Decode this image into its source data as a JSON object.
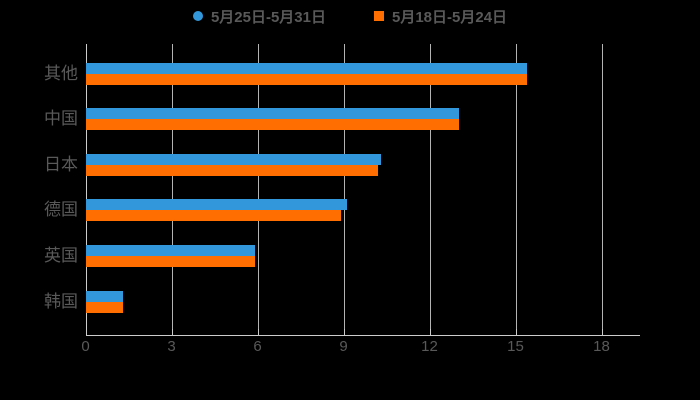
{
  "chart_data": {
    "type": "bar",
    "orientation": "horizontal",
    "title": "",
    "xlabel": "",
    "ylabel": "",
    "categories": [
      "其他",
      "中国",
      "日本",
      "德国",
      "英国",
      "韩国"
    ],
    "series": [
      {
        "name": "5月25日-5月31日",
        "color": "#3398DB",
        "marker": "circle",
        "values": [
          15.4,
          13.0,
          10.3,
          9.1,
          5.9,
          1.3
        ]
      },
      {
        "name": "5月18日-5月24日",
        "color": "#FF6E00",
        "marker": "square",
        "values": [
          15.4,
          13.0,
          10.2,
          8.9,
          5.9,
          1.3
        ]
      }
    ],
    "x_ticks": [
      0,
      3,
      6,
      9,
      12,
      15,
      18
    ],
    "xlim": [
      0,
      19.3
    ],
    "grid": true,
    "legend_position": "top-center",
    "colors": {
      "background": "#000000",
      "text": "#595959",
      "axis": "#CCCCCC",
      "gridline": "#C6C6C6"
    }
  }
}
